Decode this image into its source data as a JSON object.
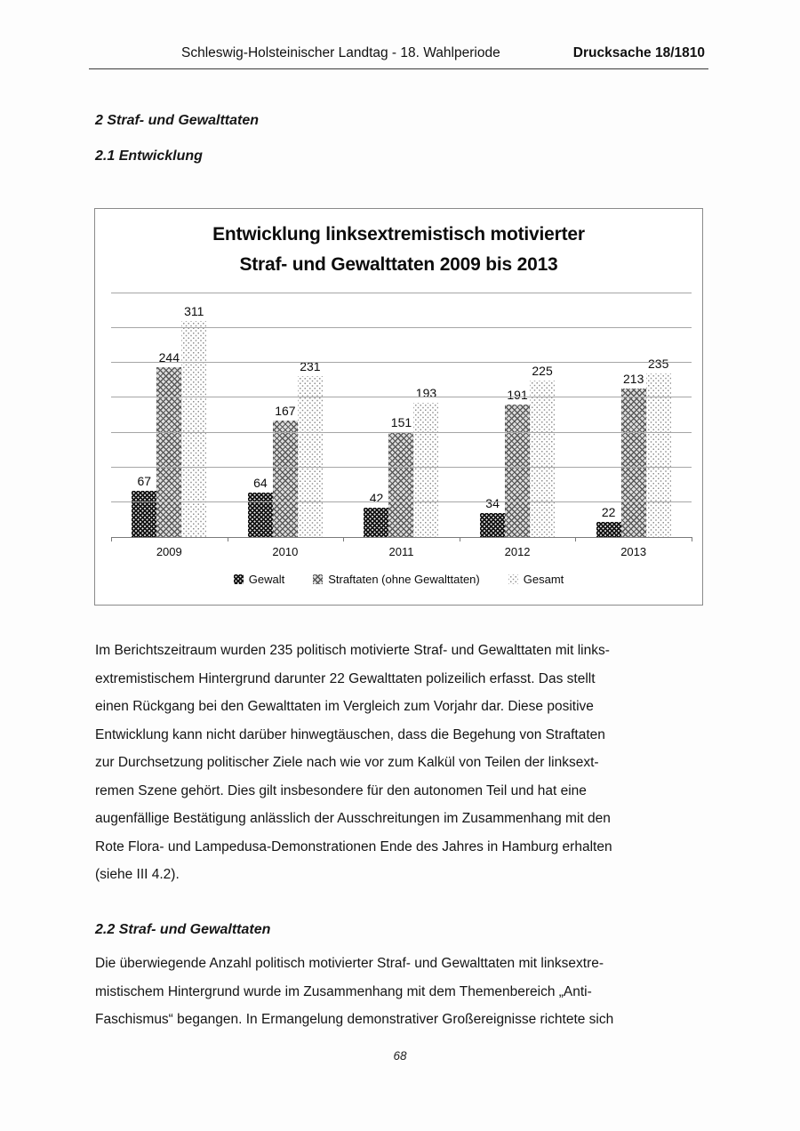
{
  "header": {
    "left": "Schleswig-Holsteinischer Landtag - 18. Wahlperiode",
    "right": "Drucksache 18/1810"
  },
  "headings": {
    "section2": "2 Straf- und Gewalttaten",
    "section2_1": "2.1 Entwicklung",
    "section2_2": "2.2 Straf- und Gewalttaten"
  },
  "chart_data": {
    "type": "bar",
    "title": "Entwicklung linksextremistisch motivierter Straf- und Gewalttaten 2009 bis 2013",
    "title_lines": [
      "Entwicklung linksextremistisch motivierter",
      "Straf- und Gewalttaten 2009 bis 2013"
    ],
    "categories": [
      "2009",
      "2010",
      "2011",
      "2012",
      "2013"
    ],
    "series": [
      {
        "name": "Gewalt",
        "pattern": "black-white-dots",
        "values": [
          67,
          64,
          42,
          34,
          22
        ]
      },
      {
        "name": "Straftaten (ohne Gewalttaten)",
        "pattern": "gray-crosshatch",
        "values": [
          244,
          167,
          151,
          191,
          213
        ]
      },
      {
        "name": "Gesamt",
        "pattern": "white-gray-dots",
        "values": [
          311,
          231,
          193,
          225,
          235
        ]
      }
    ],
    "xlabel": "",
    "ylabel": "",
    "ylim": [
      0,
      350
    ],
    "gridline_step": 50,
    "grid": true,
    "y_axis_labels_visible": false,
    "data_labels": "outside-end",
    "legend_position": "bottom",
    "colors": {
      "grid": "#a6a6a6",
      "axis": "#7a7a7a",
      "label": "#0c0c0c"
    }
  },
  "paragraphs": {
    "p1_lines": [
      "Im Berichtszeitraum wurden 235 politisch motivierte Straf- und Gewalttaten mit links-",
      "extremistischem Hintergrund darunter 22 Gewalttaten polizeilich erfasst. Das stellt",
      "einen Rückgang bei den Gewalttaten im Vergleich zum Vorjahr dar. Diese positive",
      "Entwicklung kann nicht darüber hinwegtäuschen, dass die Begehung von Straftaten",
      "zur Durchsetzung politischer Ziele nach wie vor zum Kalkül von Teilen der linksext-",
      "remen Szene gehört. Dies gilt insbesondere für den autonomen Teil und hat eine",
      "augenfällige Bestätigung anlässlich der Ausschreitungen im Zusammenhang mit den",
      "Rote Flora- und Lampedusa-Demonstrationen Ende des Jahres in Hamburg erhalten",
      "(siehe III 4.2)."
    ],
    "p2_lines": [
      "Die überwiegende Anzahl politisch motivierter Straf- und Gewalttaten mit linksextre-",
      "mistischem Hintergrund wurde im Zusammenhang mit dem Themenbereich „Anti-",
      "Faschismus“ begangen. In Ermangelung demonstrativer Großereignisse richtete sich"
    ]
  },
  "footer": {
    "page_number": "68"
  }
}
